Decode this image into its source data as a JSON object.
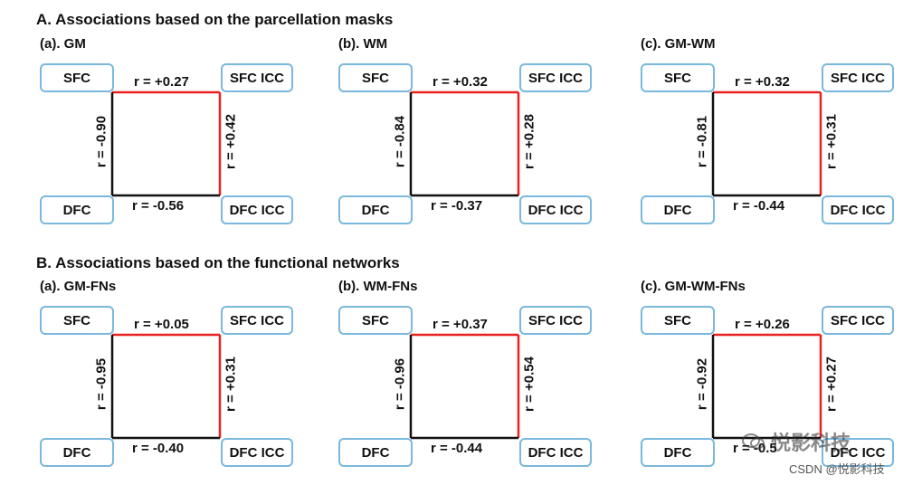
{
  "sections": [
    {
      "title": "A. Associations based on the parcellation masks",
      "panels": [
        {
          "title": "(a). GM",
          "sfc": "SFC",
          "sfc_icc": "SFC ICC",
          "dfc": "DFC",
          "dfc_icc": "DFC ICC",
          "r_top": "r = +0.27",
          "r_bottom": "r = -0.56",
          "r_left": "r = -0.90",
          "r_right": "r = +0.42"
        },
        {
          "title": "(b). WM",
          "sfc": "SFC",
          "sfc_icc": "SFC ICC",
          "dfc": "DFC",
          "dfc_icc": "DFC ICC",
          "r_top": "r = +0.32",
          "r_bottom": "r = -0.37",
          "r_left": "r = -0.84",
          "r_right": "r = +0.28"
        },
        {
          "title": "(c). GM-WM",
          "sfc": "SFC",
          "sfc_icc": "SFC ICC",
          "dfc": "DFC",
          "dfc_icc": "DFC ICC",
          "r_top": "r = +0.32",
          "r_bottom": "r = -0.44",
          "r_left": "r = -0.81",
          "r_right": "r = +0.31"
        }
      ]
    },
    {
      "title": "B. Associations based on the functional networks",
      "panels": [
        {
          "title": "(a). GM-FNs",
          "sfc": "SFC",
          "sfc_icc": "SFC ICC",
          "dfc": "DFC",
          "dfc_icc": "DFC ICC",
          "r_top": "r = +0.05",
          "r_bottom": "r = -0.40",
          "r_left": "r = -0.95",
          "r_right": "r = +0.31"
        },
        {
          "title": "(b). WM-FNs",
          "sfc": "SFC",
          "sfc_icc": "SFC ICC",
          "dfc": "DFC",
          "dfc_icc": "DFC ICC",
          "r_top": "r = +0.37",
          "r_bottom": "r = -0.44",
          "r_left": "r = -0.96",
          "r_right": "r = +0.54"
        },
        {
          "title": "(c). GM-WM-FNs",
          "sfc": "SFC",
          "sfc_icc": "SFC ICC",
          "dfc": "DFC",
          "dfc_icc": "DFC ICC",
          "r_top": "r = +0.26",
          "r_bottom": "r = -0.5",
          "r_left": "r = -0.92",
          "r_right": "r = +0.27"
        }
      ]
    }
  ],
  "colors": {
    "positive_link": "#e8231f",
    "negative_link": "#111111",
    "node_border": "#7ab8dd"
  },
  "watermark": {
    "text": "悦影科技",
    "credit": "CSDN @悦影科技"
  }
}
